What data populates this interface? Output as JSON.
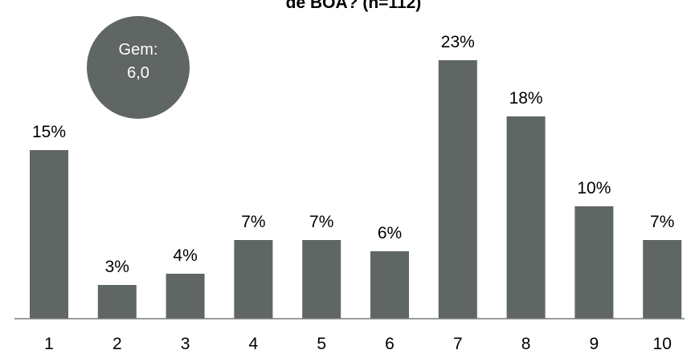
{
  "chart_data": {
    "type": "bar",
    "title": "de BOA? (n=112)",
    "xlabel": "",
    "ylabel": "",
    "categories": [
      "1",
      "2",
      "3",
      "4",
      "5",
      "6",
      "7",
      "8",
      "9",
      "10"
    ],
    "values": [
      15,
      3,
      4,
      7,
      7,
      6,
      23,
      18,
      10,
      7
    ],
    "value_labels": [
      "15%",
      "3%",
      "4%",
      "7%",
      "7%",
      "6%",
      "23%",
      "18%",
      "10%",
      "7%"
    ],
    "ylim": [
      0,
      25
    ],
    "grid": false,
    "bar_color": "#5f6664",
    "axis_color": "#7a7a7a"
  },
  "badge": {
    "line1": "Gem:",
    "line2": "6,0",
    "color": "#5f6664"
  }
}
